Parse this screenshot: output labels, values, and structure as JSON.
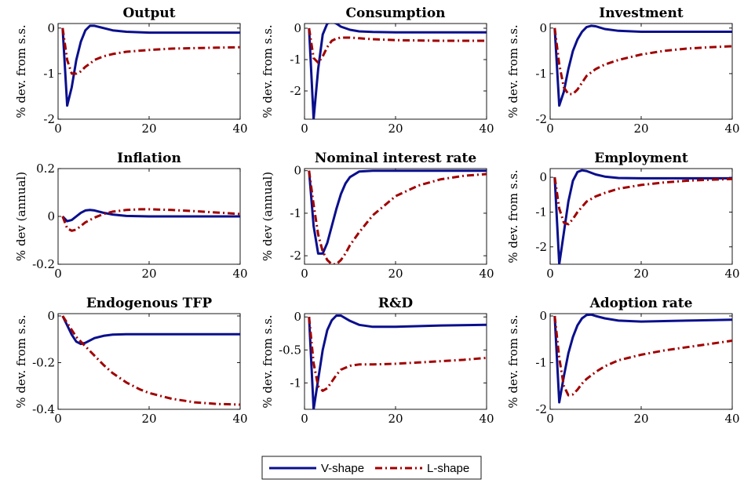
{
  "legend": {
    "items": [
      {
        "label": "V-shape",
        "color": "#0a0f8c",
        "style": "solid"
      },
      {
        "label": "L-shape",
        "color": "#a00000",
        "style": "dashdot"
      }
    ]
  },
  "chart_data": [
    {
      "type": "line",
      "title": "Output",
      "ylabel": "% dev. from s.s.",
      "xlim": [
        0,
        40
      ],
      "ylim": [
        -2,
        0.1
      ],
      "xticks": [
        0,
        20,
        40
      ],
      "yticks": [
        -2,
        -1,
        0
      ],
      "ytick_labels": [
        "-2",
        "-1",
        "0"
      ],
      "series": [
        {
          "key": "V-shape",
          "color": "#0a0f8c",
          "dash": "",
          "x": [
            1,
            2,
            3,
            4,
            5,
            6,
            7,
            8,
            10,
            12,
            15,
            20,
            30,
            40
          ],
          "y": [
            0,
            -1.7,
            -1.3,
            -0.7,
            -0.3,
            -0.05,
            0.05,
            0.05,
            0,
            -0.05,
            -0.08,
            -0.1,
            -0.1,
            -0.1
          ]
        },
        {
          "key": "L-shape",
          "color": "#a00000",
          "dash": "9 4 2 4",
          "x": [
            1,
            2,
            3,
            4,
            5,
            6,
            7,
            8,
            10,
            12,
            15,
            20,
            25,
            30,
            35,
            40
          ],
          "y": [
            0,
            -0.7,
            -1.0,
            -1.0,
            -0.95,
            -0.85,
            -0.78,
            -0.7,
            -0.62,
            -0.57,
            -0.52,
            -0.48,
            -0.45,
            -0.44,
            -0.43,
            -0.42
          ]
        }
      ]
    },
    {
      "type": "line",
      "title": "Consumption",
      "ylabel": "% dev. from s.s.",
      "xlim": [
        0,
        40
      ],
      "ylim": [
        -2.9,
        0.15
      ],
      "xticks": [
        0,
        20,
        40
      ],
      "yticks": [
        -2,
        -1,
        0
      ],
      "ytick_labels": [
        "-2",
        "-1",
        "0"
      ],
      "series": [
        {
          "key": "V-shape",
          "color": "#0a0f8c",
          "dash": "",
          "x": [
            1,
            2,
            3,
            4,
            5,
            6,
            7,
            8,
            10,
            12,
            15,
            20,
            30,
            40
          ],
          "y": [
            0,
            -2.9,
            -1.3,
            -0.2,
            0.15,
            0.2,
            0.15,
            0.05,
            -0.05,
            -0.1,
            -0.12,
            -0.13,
            -0.13,
            -0.13
          ]
        },
        {
          "key": "L-shape",
          "color": "#a00000",
          "dash": "9 4 2 4",
          "x": [
            1,
            2,
            3,
            4,
            5,
            6,
            7,
            8,
            10,
            12,
            15,
            20,
            25,
            30,
            35,
            40
          ],
          "y": [
            0,
            -0.95,
            -1.1,
            -0.9,
            -0.6,
            -0.4,
            -0.33,
            -0.3,
            -0.3,
            -0.32,
            -0.35,
            -0.38,
            -0.39,
            -0.4,
            -0.4,
            -0.4
          ]
        }
      ]
    },
    {
      "type": "line",
      "title": "Investment",
      "ylabel": "% dev. from s.s.",
      "xlim": [
        0,
        40
      ],
      "ylim": [
        -2,
        0.1
      ],
      "xticks": [
        0,
        20,
        40
      ],
      "yticks": [
        -2,
        -1,
        0
      ],
      "ytick_labels": [
        "-2",
        "-1",
        "0"
      ],
      "series": [
        {
          "key": "V-shape",
          "color": "#0a0f8c",
          "dash": "",
          "x": [
            1,
            2,
            3,
            4,
            5,
            6,
            7,
            8,
            9,
            10,
            12,
            15,
            20,
            30,
            40
          ],
          "y": [
            0,
            -1.7,
            -1.4,
            -0.9,
            -0.5,
            -0.25,
            -0.08,
            0.02,
            0.05,
            0.04,
            -0.02,
            -0.06,
            -0.08,
            -0.08,
            -0.08
          ]
        },
        {
          "key": "L-shape",
          "color": "#a00000",
          "dash": "9 4 2 4",
          "x": [
            1,
            2,
            3,
            4,
            5,
            6,
            7,
            8,
            10,
            12,
            15,
            20,
            25,
            30,
            35,
            40
          ],
          "y": [
            0,
            -0.8,
            -1.3,
            -1.45,
            -1.45,
            -1.35,
            -1.2,
            -1.05,
            -0.9,
            -0.8,
            -0.7,
            -0.58,
            -0.5,
            -0.45,
            -0.42,
            -0.4
          ]
        }
      ]
    },
    {
      "type": "line",
      "title": "Inflation",
      "ylabel": "% dev (annual)",
      "xlim": [
        0,
        40
      ],
      "ylim": [
        -0.2,
        0.2
      ],
      "xticks": [
        0,
        20,
        40
      ],
      "yticks": [
        -0.2,
        0,
        0.2
      ],
      "ytick_labels": [
        "-0.2",
        "0",
        "0.2"
      ],
      "series": [
        {
          "key": "V-shape",
          "color": "#0a0f8c",
          "dash": "",
          "x": [
            1,
            2,
            3,
            4,
            5,
            6,
            7,
            8,
            9,
            10,
            12,
            15,
            20,
            30,
            40
          ],
          "y": [
            0,
            -0.02,
            -0.015,
            0,
            0.015,
            0.025,
            0.027,
            0.025,
            0.02,
            0.015,
            0.008,
            0.002,
            0,
            0,
            0
          ]
        },
        {
          "key": "L-shape",
          "color": "#a00000",
          "dash": "9 4 2 4",
          "x": [
            1,
            2,
            3,
            4,
            5,
            6,
            8,
            10,
            12,
            15,
            18,
            20,
            25,
            30,
            35,
            40
          ],
          "y": [
            0,
            -0.05,
            -0.06,
            -0.055,
            -0.04,
            -0.025,
            -0.005,
            0.01,
            0.02,
            0.027,
            0.03,
            0.03,
            0.027,
            0.022,
            0.016,
            0.01
          ]
        }
      ]
    },
    {
      "type": "line",
      "title": "Nominal interest rate",
      "ylabel": "% dev (annual)",
      "xlim": [
        0,
        40
      ],
      "ylim": [
        -2.2,
        0.05
      ],
      "xticks": [
        0,
        20,
        40
      ],
      "yticks": [
        -2,
        -1,
        0
      ],
      "ytick_labels": [
        "-2",
        "-1",
        "0"
      ],
      "series": [
        {
          "key": "V-shape",
          "color": "#0a0f8c",
          "dash": "",
          "x": [
            1,
            2,
            3,
            4,
            5,
            6,
            7,
            8,
            9,
            10,
            12,
            15,
            20,
            30,
            40
          ],
          "y": [
            0,
            -1.3,
            -1.95,
            -1.95,
            -1.7,
            -1.3,
            -0.9,
            -0.55,
            -0.3,
            -0.15,
            -0.02,
            0,
            0,
            0,
            0
          ]
        },
        {
          "key": "L-shape",
          "color": "#a00000",
          "dash": "9 4 2 4",
          "x": [
            1,
            2,
            3,
            4,
            5,
            6,
            7,
            8,
            9,
            10,
            12,
            15,
            20,
            25,
            30,
            35,
            40
          ],
          "y": [
            0,
            -0.8,
            -1.5,
            -1.9,
            -2.1,
            -2.2,
            -2.2,
            -2.1,
            -1.95,
            -1.75,
            -1.45,
            -1.05,
            -0.6,
            -0.35,
            -0.2,
            -0.12,
            -0.08
          ]
        }
      ]
    },
    {
      "type": "line",
      "title": "Employment",
      "ylabel": "% dev. from s.s.",
      "xlim": [
        0,
        40
      ],
      "ylim": [
        -2.5,
        0.25
      ],
      "xticks": [
        0,
        20,
        40
      ],
      "yticks": [
        -2,
        -1,
        0
      ],
      "ytick_labels": [
        "-2",
        "-1",
        "0"
      ],
      "series": [
        {
          "key": "V-shape",
          "color": "#0a0f8c",
          "dash": "",
          "x": [
            1,
            2,
            3,
            4,
            5,
            6,
            7,
            8,
            10,
            12,
            15,
            20,
            30,
            40
          ],
          "y": [
            0,
            -2.5,
            -1.6,
            -0.7,
            -0.1,
            0.15,
            0.2,
            0.18,
            0.08,
            0.02,
            -0.02,
            -0.03,
            -0.03,
            -0.03
          ]
        },
        {
          "key": "L-shape",
          "color": "#a00000",
          "dash": "9 4 2 4",
          "x": [
            1,
            2,
            3,
            4,
            5,
            6,
            7,
            8,
            10,
            12,
            15,
            20,
            25,
            30,
            35,
            40
          ],
          "y": [
            0,
            -0.9,
            -1.3,
            -1.35,
            -1.2,
            -1.0,
            -0.85,
            -0.7,
            -0.55,
            -0.45,
            -0.33,
            -0.22,
            -0.15,
            -0.1,
            -0.07,
            -0.05
          ]
        }
      ]
    },
    {
      "type": "line",
      "title": "Endogenous TFP",
      "ylabel": "% dev. from s.s.",
      "xlim": [
        0,
        40
      ],
      "ylim": [
        -0.4,
        0.01
      ],
      "xticks": [
        0,
        20,
        40
      ],
      "yticks": [
        -0.4,
        -0.2,
        0
      ],
      "ytick_labels": [
        "-0.4",
        "-0.2",
        "0"
      ],
      "series": [
        {
          "key": "V-shape",
          "color": "#0a0f8c",
          "dash": "",
          "x": [
            1,
            2,
            3,
            4,
            5,
            6,
            7,
            8,
            10,
            12,
            15,
            20,
            30,
            40
          ],
          "y": [
            0,
            -0.04,
            -0.08,
            -0.11,
            -0.12,
            -0.115,
            -0.105,
            -0.095,
            -0.085,
            -0.08,
            -0.078,
            -0.078,
            -0.078,
            -0.078
          ]
        },
        {
          "key": "L-shape",
          "color": "#a00000",
          "dash": "9 4 2 4",
          "x": [
            1,
            2,
            3,
            4,
            5,
            6,
            8,
            10,
            12,
            15,
            18,
            20,
            25,
            30,
            35,
            40
          ],
          "y": [
            0,
            -0.03,
            -0.06,
            -0.09,
            -0.11,
            -0.13,
            -0.17,
            -0.21,
            -0.245,
            -0.285,
            -0.315,
            -0.33,
            -0.355,
            -0.37,
            -0.377,
            -0.38
          ]
        }
      ]
    },
    {
      "type": "line",
      "title": "R&D",
      "ylabel": "% dev. from s.s.",
      "xlim": [
        0,
        40
      ],
      "ylim": [
        -1.4,
        0.05
      ],
      "xticks": [
        0,
        20,
        40
      ],
      "yticks": [
        -1,
        -0.5,
        0
      ],
      "ytick_labels": [
        "-1",
        "-0.5",
        "0"
      ],
      "series": [
        {
          "key": "V-shape",
          "color": "#0a0f8c",
          "dash": "",
          "x": [
            1,
            2,
            3,
            4,
            5,
            6,
            7,
            8,
            9,
            10,
            12,
            15,
            20,
            30,
            40
          ],
          "y": [
            0,
            -1.4,
            -0.95,
            -0.5,
            -0.2,
            -0.05,
            0.02,
            0.02,
            -0.02,
            -0.06,
            -0.12,
            -0.15,
            -0.15,
            -0.13,
            -0.12
          ]
        },
        {
          "key": "L-shape",
          "color": "#a00000",
          "dash": "9 4 2 4",
          "x": [
            1,
            2,
            3,
            4,
            5,
            6,
            7,
            8,
            10,
            12,
            15,
            20,
            25,
            30,
            35,
            40
          ],
          "y": [
            0,
            -0.7,
            -1.05,
            -1.12,
            -1.08,
            -0.98,
            -0.88,
            -0.8,
            -0.74,
            -0.72,
            -0.72,
            -0.71,
            -0.69,
            -0.67,
            -0.65,
            -0.62
          ]
        }
      ]
    },
    {
      "type": "line",
      "title": "Adoption rate",
      "ylabel": "% dev. from s.s.",
      "xlim": [
        0,
        40
      ],
      "ylim": [
        -2,
        0.05
      ],
      "xticks": [
        0,
        20,
        40
      ],
      "yticks": [
        -2,
        -1,
        0
      ],
      "ytick_labels": [
        "-2",
        "-1",
        "0"
      ],
      "series": [
        {
          "key": "V-shape",
          "color": "#0a0f8c",
          "dash": "",
          "x": [
            1,
            2,
            3,
            4,
            5,
            6,
            7,
            8,
            9,
            10,
            12,
            15,
            20,
            30,
            40
          ],
          "y": [
            0,
            -1.85,
            -1.3,
            -0.8,
            -0.45,
            -0.2,
            -0.05,
            0.02,
            0.03,
            0.0,
            -0.05,
            -0.1,
            -0.12,
            -0.1,
            -0.08
          ]
        },
        {
          "key": "L-shape",
          "color": "#a00000",
          "dash": "9 4 2 4",
          "x": [
            1,
            2,
            3,
            4,
            5,
            6,
            7,
            8,
            10,
            12,
            15,
            20,
            25,
            30,
            35,
            40
          ],
          "y": [
            0,
            -0.9,
            -1.5,
            -1.7,
            -1.68,
            -1.58,
            -1.45,
            -1.35,
            -1.2,
            -1.08,
            -0.95,
            -0.83,
            -0.74,
            -0.67,
            -0.6,
            -0.53
          ]
        }
      ]
    }
  ]
}
